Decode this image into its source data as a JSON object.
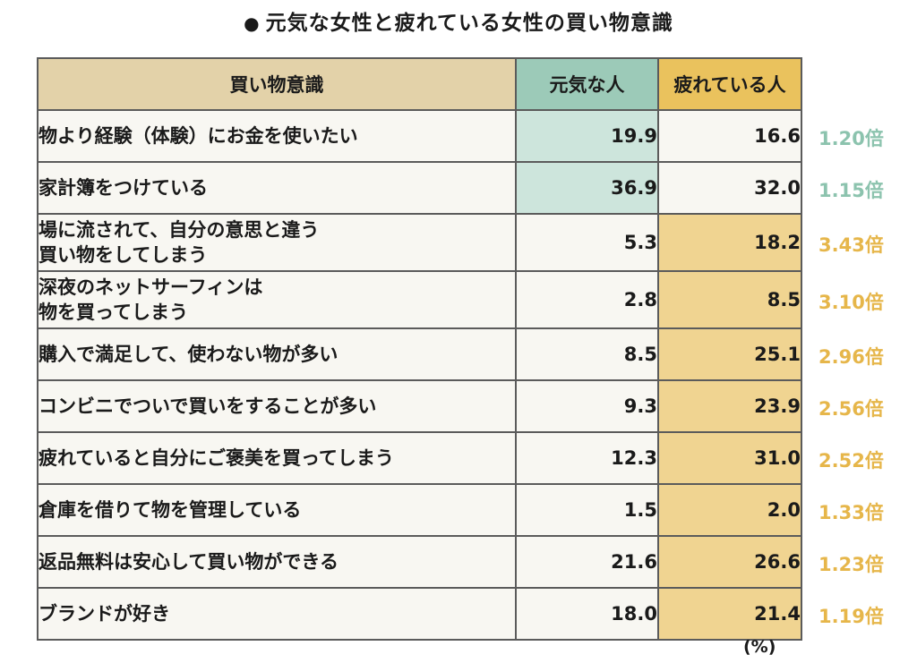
{
  "title": "元気な女性と疲れている女性の買い物意識",
  "title_bullet": "●",
  "unit": "(%)",
  "colors": {
    "header_label": "#e3d2a9",
    "header_genki": "#9ccab8",
    "header_tsukare": "#eac25d",
    "highlight_genki": "#cde5dc",
    "highlight_tsukare": "#f0d491",
    "ratio_genki": "#8cc3ae",
    "ratio_tsukare": "#e6b64a"
  },
  "chart_data": {
    "type": "table",
    "title": "元気な女性と疲れている女性の買い物意識",
    "columns": [
      "買い物意識",
      "元気な人",
      "疲れている人"
    ],
    "unit": "(%)",
    "rows": [
      {
        "label": [
          "物より経験（体験）にお金を使いたい"
        ],
        "genki": "19.9",
        "tsukare": "16.6",
        "ratio": "1.20倍",
        "higher": "genki"
      },
      {
        "label": [
          "家計簿をつけている"
        ],
        "genki": "36.9",
        "tsukare": "32.0",
        "ratio": "1.15倍",
        "higher": "genki"
      },
      {
        "label": [
          "場に流されて、自分の意思と違う",
          "買い物をしてしまう"
        ],
        "genki": "5.3",
        "tsukare": "18.2",
        "ratio": "3.43倍",
        "higher": "tsukare"
      },
      {
        "label": [
          "深夜のネットサーフィンは",
          "物を買ってしまう"
        ],
        "genki": "2.8",
        "tsukare": "8.5",
        "ratio": "3.10倍",
        "higher": "tsukare"
      },
      {
        "label": [
          "購入で満足して、使わない物が多い"
        ],
        "genki": "8.5",
        "tsukare": "25.1",
        "ratio": "2.96倍",
        "higher": "tsukare"
      },
      {
        "label": [
          "コンビニでついで買いをすることが多い"
        ],
        "genki": "9.3",
        "tsukare": "23.9",
        "ratio": "2.56倍",
        "higher": "tsukare"
      },
      {
        "label": [
          "疲れていると自分にご褒美を買ってしまう"
        ],
        "genki": "12.3",
        "tsukare": "31.0",
        "ratio": "2.52倍",
        "higher": "tsukare"
      },
      {
        "label": [
          "倉庫を借りて物を管理している"
        ],
        "genki": "1.5",
        "tsukare": "2.0",
        "ratio": "1.33倍",
        "higher": "tsukare"
      },
      {
        "label": [
          "返品無料は安心して買い物ができる"
        ],
        "genki": "21.6",
        "tsukare": "26.6",
        "ratio": "1.23倍",
        "higher": "tsukare"
      },
      {
        "label": [
          "ブランドが好き"
        ],
        "genki": "18.0",
        "tsukare": "21.4",
        "ratio": "1.19倍",
        "higher": "tsukare"
      }
    ]
  }
}
